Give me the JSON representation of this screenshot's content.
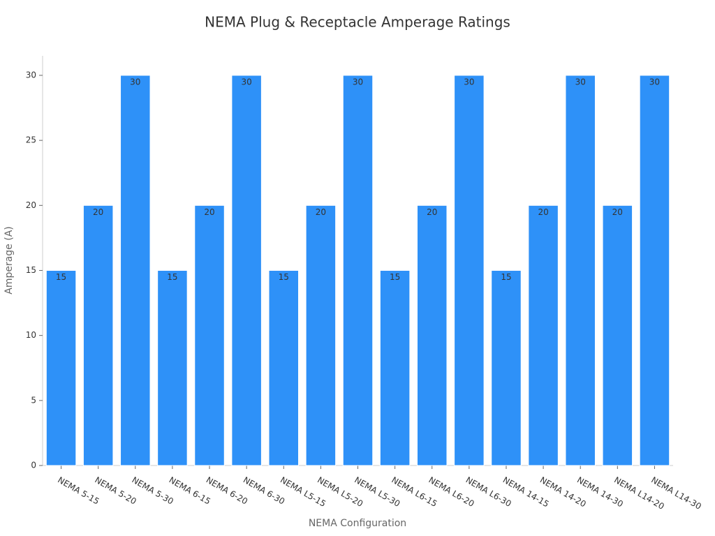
{
  "chart_data": {
    "type": "bar",
    "title": "NEMA Plug & Receptacle Amperage Ratings",
    "x_label": "NEMA Configuration",
    "y_label": "Amperage (A)",
    "categories": [
      "NEMA 5-15",
      "NEMA 5-20",
      "NEMA 5-30",
      "NEMA 6-15",
      "NEMA 6-20",
      "NEMA 6-30",
      "NEMA L5-15",
      "NEMA L5-20",
      "NEMA L5-30",
      "NEMA L6-15",
      "NEMA L6-20",
      "NEMA L6-30",
      "NEMA 14-15",
      "NEMA 14-20",
      "NEMA 14-30",
      "NEMA L14-20",
      "NEMA L14-30"
    ],
    "values": [
      15,
      20,
      30,
      15,
      20,
      30,
      15,
      20,
      30,
      15,
      20,
      30,
      15,
      20,
      30,
      20,
      30
    ],
    "color": "#2e91f8",
    "ylim": [
      0,
      31.5
    ],
    "yticks": [
      0,
      5,
      10,
      15,
      20,
      25,
      30
    ],
    "grid": false
  }
}
